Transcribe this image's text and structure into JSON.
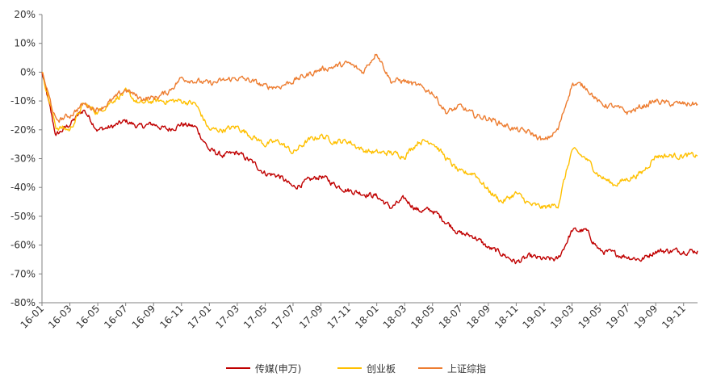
{
  "chart_data": {
    "type": "line",
    "title": "",
    "xlabel": "",
    "ylabel": "",
    "ylim": [
      -80,
      20
    ],
    "yticks": [
      "20%",
      "10%",
      "0%",
      "-10%",
      "-20%",
      "-30%",
      "-40%",
      "-50%",
      "-60%",
      "-70%",
      "-80%"
    ],
    "ytick_values": [
      20,
      10,
      0,
      -10,
      -20,
      -30,
      -40,
      -50,
      -60,
      -70,
      -80
    ],
    "xticks": [
      "16-01",
      "16-03",
      "16-05",
      "16-07",
      "16-09",
      "16-11",
      "17-01",
      "17-03",
      "17-05",
      "17-07",
      "17-09",
      "17-11",
      "18-01",
      "18-03",
      "18-05",
      "18-07",
      "18-09",
      "18-11",
      "19-01",
      "19-03",
      "19-05",
      "19-07",
      "19-09",
      "19-11"
    ],
    "x": [
      "16-01",
      "16-02",
      "16-03",
      "16-04",
      "16-05",
      "16-06",
      "16-07",
      "16-08",
      "16-09",
      "16-10",
      "16-11",
      "16-12",
      "17-01",
      "17-02",
      "17-03",
      "17-04",
      "17-05",
      "17-06",
      "17-07",
      "17-08",
      "17-09",
      "17-10",
      "17-11",
      "17-12",
      "18-01",
      "18-02",
      "18-03",
      "18-04",
      "18-05",
      "18-06",
      "18-07",
      "18-08",
      "18-09",
      "18-10",
      "18-11",
      "18-12",
      "19-01",
      "19-02",
      "19-03",
      "19-04",
      "19-05",
      "19-06",
      "19-07",
      "19-08",
      "19-09",
      "19-10",
      "19-11",
      "19-12"
    ],
    "grid": false,
    "legend_position": "bottom",
    "series": [
      {
        "name": "传媒(申万)",
        "color": "#C00000",
        "values": [
          0,
          -22,
          -18,
          -13,
          -20,
          -19,
          -17,
          -19,
          -18,
          -20,
          -18,
          -19,
          -27,
          -29,
          -28,
          -31,
          -35,
          -36,
          -40,
          -38,
          -36,
          -39,
          -41,
          -42,
          -43,
          -47,
          -44,
          -48,
          -48,
          -52,
          -56,
          -57,
          -61,
          -63,
          -66,
          -64,
          -65,
          -65,
          -55,
          -55,
          -62,
          -63,
          -64,
          -65,
          -62,
          -62,
          -62,
          -62
        ]
      },
      {
        "name": "创业板",
        "color": "#FFC000",
        "values": [
          0,
          -19,
          -20,
          -11,
          -14,
          -10,
          -7,
          -11,
          -10,
          -10,
          -10,
          -11,
          -20,
          -20,
          -19,
          -22,
          -25,
          -24,
          -28,
          -24,
          -22,
          -24,
          -24,
          -27,
          -28,
          -28,
          -29,
          -24,
          -24,
          -30,
          -35,
          -35,
          -41,
          -45,
          -42,
          -46,
          -47,
          -46,
          -27,
          -30,
          -36,
          -39,
          -37,
          -35,
          -29,
          -29,
          -29,
          -29
        ]
      },
      {
        "name": "上证综指",
        "color": "#ED7D31",
        "values": [
          0,
          -17,
          -15,
          -11,
          -13,
          -10,
          -6,
          -9,
          -9,
          -7,
          -2,
          -3,
          -4,
          -3,
          -2,
          -3,
          -5,
          -5,
          -3,
          -1,
          1,
          2,
          3,
          0,
          7,
          -3,
          -3,
          -5,
          -7,
          -14,
          -12,
          -15,
          -16,
          -18,
          -20,
          -21,
          -24,
          -20,
          -4,
          -5,
          -11,
          -12,
          -14,
          -12,
          -10,
          -11,
          -11,
          -11
        ]
      }
    ]
  }
}
